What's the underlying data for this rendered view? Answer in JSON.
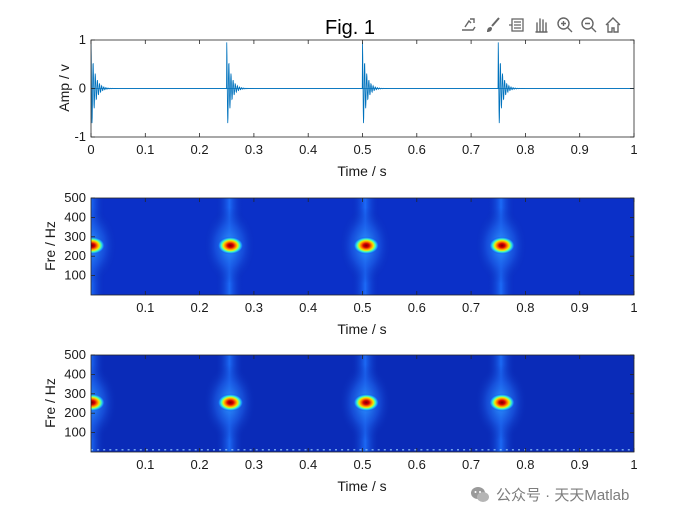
{
  "figure": {
    "title": "Fig. 1"
  },
  "toolbar": [
    {
      "name": "export-icon"
    },
    {
      "name": "brush-icon"
    },
    {
      "name": "datatip-icon"
    },
    {
      "name": "pan-hand-icon"
    },
    {
      "name": "zoom-in-icon"
    },
    {
      "name": "zoom-out-icon"
    },
    {
      "name": "home-icon"
    }
  ],
  "watermark": {
    "text": "公众号 · 天天Matlab"
  },
  "chart_data": [
    {
      "type": "line",
      "xlabel": "Time / s",
      "ylabel": "Amp / v",
      "xlim": [
        0,
        1
      ],
      "ylim": [
        -1,
        1
      ],
      "xticks": [
        "0",
        "0.1",
        "0.2",
        "0.3",
        "0.4",
        "0.5",
        "0.6",
        "0.7",
        "0.8",
        "0.9",
        "1"
      ],
      "yticks": [
        "1",
        "0",
        "-1"
      ],
      "color": "#0072bd",
      "impulse_times": [
        0.0,
        0.25,
        0.5,
        0.75
      ],
      "impulse_peak_amplitude": 0.95,
      "grid": false
    },
    {
      "type": "heatmap",
      "xlabel": "Time / s",
      "ylabel": "Fre / Hz",
      "xlim": [
        0,
        1
      ],
      "ylim": [
        0,
        500
      ],
      "xticks": [
        "0.1",
        "0.2",
        "0.3",
        "0.4",
        "0.5",
        "0.6",
        "0.7",
        "0.8",
        "0.9",
        "1"
      ],
      "yticks": [
        "500",
        "400",
        "300",
        "200",
        "100"
      ],
      "colormap": "jet",
      "hotspots": [
        {
          "time": 0.0,
          "freq": 255
        },
        {
          "time": 0.255,
          "freq": 255
        },
        {
          "time": 0.505,
          "freq": 255
        },
        {
          "time": 0.755,
          "freq": 255
        }
      ]
    },
    {
      "type": "heatmap",
      "xlabel": "Time / s",
      "ylabel": "Fre / Hz",
      "xlim": [
        0,
        1
      ],
      "ylim": [
        0,
        500
      ],
      "xticks": [
        "0.1",
        "0.2",
        "0.3",
        "0.4",
        "0.5",
        "0.6",
        "0.7",
        "0.8",
        "0.9",
        "1"
      ],
      "yticks": [
        "500",
        "400",
        "300",
        "200",
        "100"
      ],
      "colormap": "jet",
      "hotspots": [
        {
          "time": 0.0,
          "freq": 255
        },
        {
          "time": 0.255,
          "freq": 255
        },
        {
          "time": 0.505,
          "freq": 255
        },
        {
          "time": 0.755,
          "freq": 255
        }
      ]
    }
  ]
}
